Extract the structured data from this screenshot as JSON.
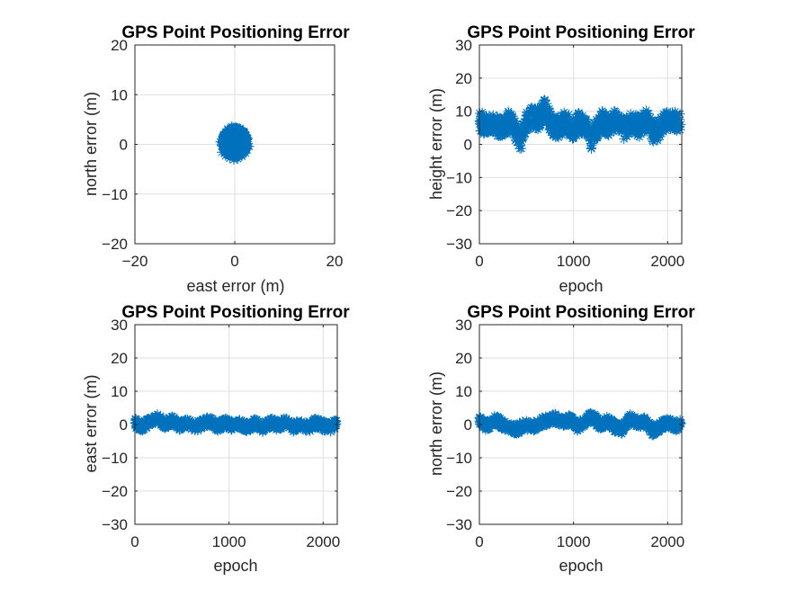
{
  "colors": {
    "series": "#0072BD",
    "axis": "#262626",
    "grid": "#DFDFDF"
  },
  "chart_data": [
    {
      "type": "scatter",
      "title": "GPS Point Positioning Error",
      "xlabel": "east error (m)",
      "ylabel": "north error (m)",
      "xlim": [
        -20,
        20
      ],
      "ylim": [
        -20,
        20
      ],
      "xticks": [
        -20,
        0,
        20
      ],
      "yticks": [
        -20,
        -10,
        0,
        10,
        20
      ],
      "grid": true,
      "marker": "asterisk",
      "series": [
        {
          "x": [
            -2.6,
            -2.2,
            -1.8,
            -1.4,
            -1.0,
            -0.6,
            -0.2,
            0.2,
            0.6,
            1.0,
            1.4,
            1.8,
            2.2,
            2.6,
            2.9,
            -2.9,
            0.0,
            -1.2,
            1.2,
            0.4,
            -0.5,
            2.0,
            -2.0,
            1.6,
            -1.6,
            0.8,
            -0.9,
            2.4,
            -2.4,
            0.1
          ],
          "y": [
            -1.6,
            1.9,
            -2.3,
            3.1,
            -2.8,
            3.6,
            -3.1,
            3.4,
            -2.9,
            3.2,
            -2.4,
            2.6,
            -1.8,
            1.2,
            -0.4,
            0.5,
            0.2,
            1.1,
            -1.3,
            -0.8,
            1.6,
            0.4,
            -0.6,
            -1.0,
            2.1,
            1.8,
            -1.5,
            -1.0,
            1.4,
            -2.2
          ]
        }
      ]
    },
    {
      "type": "scatter",
      "title": "GPS Point Positioning Error",
      "xlabel": "epoch",
      "ylabel": "height error (m)",
      "xlim": [
        0,
        2150
      ],
      "ylim": [
        -30,
        30
      ],
      "xticks": [
        0,
        1000,
        2000
      ],
      "yticks": [
        -30,
        -20,
        -10,
        0,
        10,
        20,
        30
      ],
      "grid": true,
      "marker": "asterisk",
      "series": [
        {
          "x": [
            0,
            80,
            160,
            240,
            320,
            400,
            440,
            480,
            560,
            640,
            700,
            760,
            840,
            920,
            1000,
            1060,
            1140,
            1180,
            1220,
            1300,
            1380,
            1460,
            1540,
            1620,
            1700,
            1780,
            1860,
            1940,
            2020,
            2080,
            2140
          ],
          "y": [
            7.0,
            5.5,
            6.5,
            4.5,
            7.5,
            3.0,
            1.0,
            6.0,
            8.5,
            7.5,
            11.0,
            6.0,
            5.0,
            7.0,
            4.5,
            6.5,
            5.0,
            1.0,
            4.0,
            7.0,
            5.5,
            8.0,
            4.5,
            6.5,
            5.0,
            7.5,
            3.0,
            5.5,
            8.0,
            7.0,
            6.0
          ]
        }
      ]
    },
    {
      "type": "scatter",
      "title": "GPS Point Positioning Error",
      "xlabel": "epoch",
      "ylabel": "east error (m)",
      "xlim": [
        0,
        2150
      ],
      "ylim": [
        -30,
        30
      ],
      "xticks": [
        0,
        1000,
        2000
      ],
      "yticks": [
        -30,
        -20,
        -10,
        0,
        10,
        20,
        30
      ],
      "grid": true,
      "marker": "asterisk",
      "series": [
        {
          "x": [
            0,
            80,
            160,
            240,
            320,
            400,
            480,
            560,
            640,
            720,
            800,
            880,
            960,
            1040,
            1120,
            1200,
            1280,
            1360,
            1440,
            1520,
            1600,
            1680,
            1760,
            1840,
            1920,
            2000,
            2080,
            2140
          ],
          "y": [
            0.5,
            -0.8,
            1.0,
            1.8,
            0.2,
            1.2,
            -0.5,
            0.8,
            -1.0,
            0.4,
            1.0,
            -0.6,
            0.6,
            -0.4,
            0.2,
            -1.0,
            0.4,
            -1.2,
            0.8,
            -0.6,
            1.0,
            -0.8,
            0.2,
            -1.0,
            0.6,
            -0.4,
            -0.8,
            0.2
          ]
        }
      ]
    },
    {
      "type": "scatter",
      "title": "GPS Point Positioning Error",
      "xlabel": "epoch",
      "ylabel": "north error (m)",
      "xlim": [
        0,
        2150
      ],
      "ylim": [
        -30,
        30
      ],
      "xticks": [
        0,
        1000,
        2000
      ],
      "yticks": [
        -30,
        -20,
        -10,
        0,
        10,
        20,
        30
      ],
      "grid": true,
      "marker": "asterisk",
      "series": [
        {
          "x": [
            0,
            80,
            160,
            240,
            320,
            400,
            480,
            560,
            640,
            720,
            800,
            880,
            960,
            1040,
            1120,
            1200,
            1280,
            1360,
            1440,
            1520,
            1600,
            1680,
            1760,
            1840,
            1920,
            2000,
            2080,
            2140
          ],
          "y": [
            1.0,
            -0.5,
            1.5,
            0.2,
            -1.0,
            -1.5,
            0.0,
            -0.8,
            0.6,
            1.2,
            2.0,
            0.8,
            1.5,
            -0.6,
            1.0,
            2.5,
            -0.2,
            1.2,
            -0.8,
            -1.5,
            2.0,
            0.5,
            1.0,
            -2.0,
            -0.5,
            0.8,
            -0.6,
            0.3
          ]
        }
      ]
    }
  ]
}
